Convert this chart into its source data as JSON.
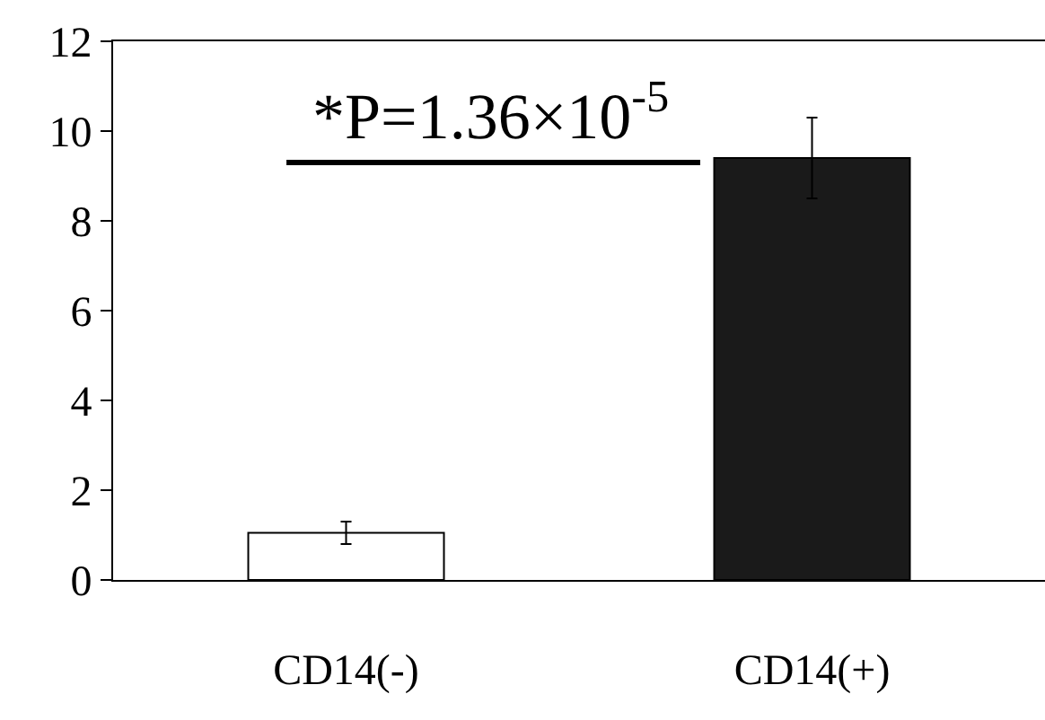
{
  "chart_data": {
    "type": "bar",
    "categories": [
      "CD14(-)",
      "CD14(+)"
    ],
    "values": [
      1.05,
      9.4
    ],
    "colors": [
      "#ffffff",
      "#1a1a1a"
    ],
    "errors": [
      0.25,
      0.9
    ],
    "ylim": [
      0,
      12
    ],
    "yticks": [
      0,
      2,
      4,
      6,
      8,
      10,
      12
    ],
    "annotations": [
      "*P=1.36×10$^{-5}$"
    ]
  }
}
